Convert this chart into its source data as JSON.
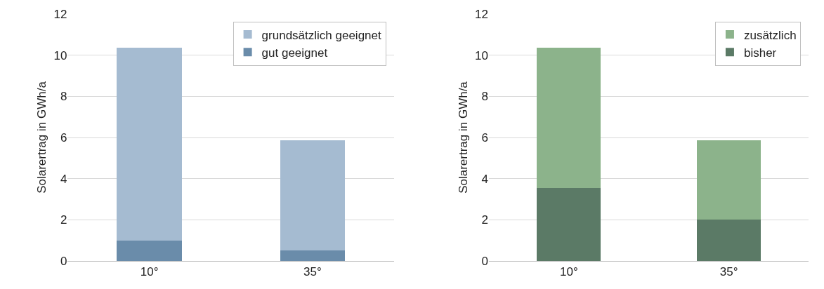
{
  "chart_data": [
    {
      "type": "bar",
      "stacked": true,
      "categories": [
        "10°",
        "35°"
      ],
      "ylabel": "Solarertrag in GWh/a",
      "ylim": [
        0,
        12
      ],
      "yticks": [
        0,
        2,
        4,
        6,
        8,
        10,
        12
      ],
      "grid": "y",
      "legend": "top right",
      "series": [
        {
          "name": "gut geeignet",
          "color": "#6a8caa",
          "values": [
            1.0,
            0.5
          ]
        },
        {
          "name": "grundsätzlich geeignet",
          "color": "#a5bbd1",
          "values": [
            9.35,
            5.35
          ]
        }
      ]
    },
    {
      "type": "bar",
      "stacked": true,
      "categories": [
        "10°",
        "35°"
      ],
      "ylabel": "Solarertrag in GWh/a",
      "ylim": [
        0,
        12
      ],
      "yticks": [
        0,
        2,
        4,
        6,
        8,
        10,
        12
      ],
      "grid": "y",
      "legend": "top right",
      "series": [
        {
          "name": "bisher",
          "color": "#5b7a66",
          "values": [
            3.55,
            2.0
          ]
        },
        {
          "name": "zusätzlich",
          "color": "#8cb38b",
          "values": [
            6.8,
            3.85
          ]
        }
      ]
    }
  ]
}
